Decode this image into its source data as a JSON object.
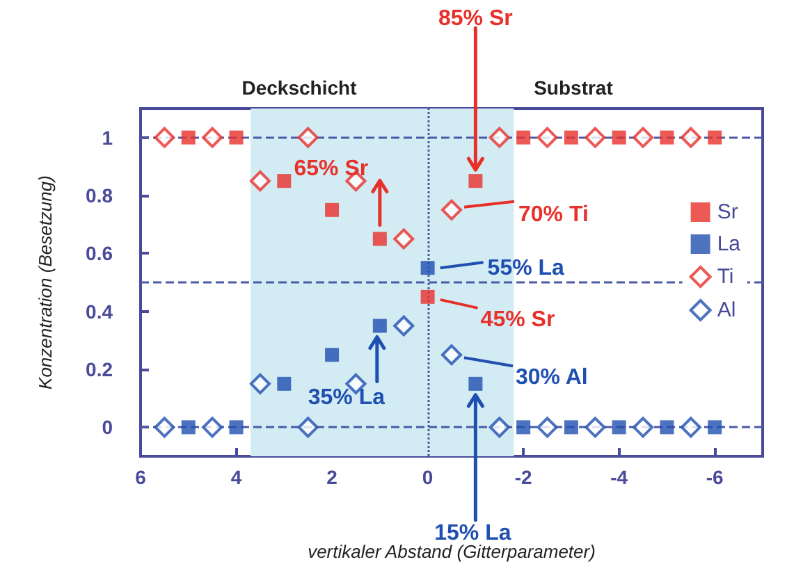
{
  "chart_data": {
    "type": "scatter",
    "xlabel": "vertikaler Abstand (Gitterparameter)",
    "ylabel": "Konzentration (Besetzung)",
    "xlim": [
      6,
      -7
    ],
    "ylim": [
      -0.1,
      1.1
    ],
    "xticks": [
      6,
      4,
      2,
      0,
      -2,
      -4,
      -6
    ],
    "yticks": [
      0,
      0.2,
      0.4,
      0.6,
      0.8,
      1
    ],
    "grid": false,
    "legend": "right",
    "series": [
      {
        "name": "Sr",
        "color": "#e8302a",
        "marker": "square",
        "x": [
          5,
          4,
          3,
          2,
          1,
          0,
          -1,
          -2,
          -3,
          -4,
          -5,
          -6
        ],
        "values": [
          1,
          1,
          0.85,
          0.75,
          0.65,
          0.45,
          0.85,
          1,
          1,
          1,
          1,
          1
        ]
      },
      {
        "name": "La",
        "color": "#1f4fb0",
        "marker": "square",
        "x": [
          5,
          4,
          3,
          2,
          1,
          0,
          -1,
          -2,
          -3,
          -4,
          -5,
          -6
        ],
        "values": [
          0,
          0,
          0.15,
          0.25,
          0.35,
          0.55,
          0.15,
          0,
          0,
          0,
          0,
          0
        ]
      },
      {
        "name": "Ti",
        "color": "#e8302a",
        "marker": "diamond",
        "x": [
          5.5,
          4.5,
          3.5,
          2.5,
          1.5,
          0.5,
          -0.5,
          -1.5,
          -2.5,
          -3.5,
          -4.5,
          -5.5
        ],
        "values": [
          1,
          1,
          0.85,
          1,
          0.85,
          0.65,
          0.75,
          1,
          1,
          1,
          1,
          1
        ]
      },
      {
        "name": "Al",
        "color": "#1f4fb0",
        "marker": "diamond",
        "x": [
          5.5,
          4.5,
          3.5,
          2.5,
          1.5,
          0.5,
          -0.5,
          -1.5,
          -2.5,
          -3.5,
          -4.5,
          -5.5
        ],
        "values": [
          0,
          0,
          0.15,
          0,
          0.15,
          0.35,
          0.25,
          0,
          0,
          0,
          0,
          0
        ]
      }
    ],
    "ref_lines": [
      {
        "axis": "y",
        "value": 1,
        "color": "#4a5aa8",
        "line_style": "dashed"
      },
      {
        "axis": "y",
        "value": 0.5,
        "color": "#4a5aa8",
        "line_style": "dashed"
      },
      {
        "axis": "y",
        "value": 0,
        "color": "#4a5aa8",
        "line_style": "dashed"
      },
      {
        "axis": "x",
        "value": 0,
        "color": "#4a5aa8",
        "line_style": "dotted"
      }
    ],
    "bands": [
      {
        "axis": "x",
        "from": 3.7,
        "to": -1.8,
        "color": "#d3ecf3"
      }
    ],
    "annotations": [
      "Deckschicht",
      "Substrat",
      {
        "text": "85% Sr",
        "x": -1,
        "y": 0.85
      },
      {
        "text": "65% Sr",
        "x": 1,
        "y": 0.65
      },
      {
        "text": "70% Ti",
        "x": -0.5,
        "y": 0.75
      },
      {
        "text": "55% La",
        "x": 0,
        "y": 0.55
      },
      {
        "text": "45% Sr",
        "x": 0,
        "y": 0.45
      },
      {
        "text": "30% Al",
        "x": -0.5,
        "y": 0.25
      },
      {
        "text": "35% La",
        "x": 1,
        "y": 0.35
      },
      {
        "text": "15% La",
        "x": -1,
        "y": 0.15
      }
    ]
  }
}
